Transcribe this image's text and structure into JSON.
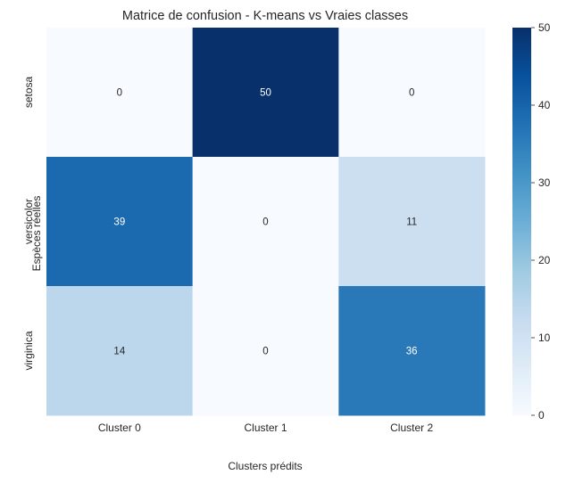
{
  "chart_data": {
    "type": "heatmap",
    "title": "Matrice de confusion - K-means vs Vraies classes",
    "xlabel": "Clusters prédits",
    "ylabel": "Espèces réelles",
    "x_categories": [
      "Cluster 0",
      "Cluster 1",
      "Cluster 2"
    ],
    "y_categories": [
      "setosa",
      "versicolor",
      "virginica"
    ],
    "values": [
      [
        0,
        50,
        0
      ],
      [
        39,
        0,
        11
      ],
      [
        14,
        0,
        36
      ]
    ],
    "colorbar": {
      "range": [
        0,
        50
      ],
      "ticks": [
        0,
        10,
        20,
        30,
        40,
        50
      ]
    },
    "colormap": "Blues"
  }
}
